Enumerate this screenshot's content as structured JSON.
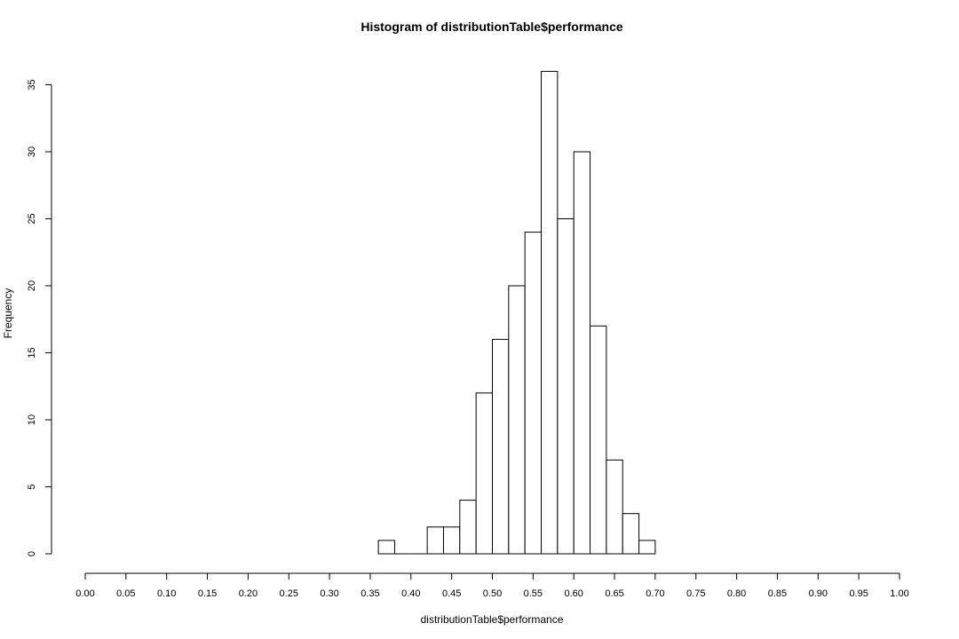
{
  "chart_data": {
    "type": "bar",
    "title": "Histogram of distributionTable$performance",
    "xlabel": "distributionTable$performance",
    "ylabel": "Frequency",
    "xlim": [
      0,
      1
    ],
    "ylim": [
      0,
      36
    ],
    "bin_width": 0.02,
    "bins": [
      {
        "start": 0.36,
        "end": 0.38,
        "count": 1
      },
      {
        "start": 0.38,
        "end": 0.4,
        "count": 0
      },
      {
        "start": 0.4,
        "end": 0.42,
        "count": 0
      },
      {
        "start": 0.42,
        "end": 0.44,
        "count": 2
      },
      {
        "start": 0.44,
        "end": 0.46,
        "count": 2
      },
      {
        "start": 0.46,
        "end": 0.48,
        "count": 4
      },
      {
        "start": 0.48,
        "end": 0.5,
        "count": 12
      },
      {
        "start": 0.5,
        "end": 0.52,
        "count": 16
      },
      {
        "start": 0.52,
        "end": 0.54,
        "count": 20
      },
      {
        "start": 0.54,
        "end": 0.56,
        "count": 24
      },
      {
        "start": 0.56,
        "end": 0.58,
        "count": 36
      },
      {
        "start": 0.58,
        "end": 0.6,
        "count": 25
      },
      {
        "start": 0.6,
        "end": 0.62,
        "count": 30
      },
      {
        "start": 0.62,
        "end": 0.64,
        "count": 17
      },
      {
        "start": 0.64,
        "end": 0.66,
        "count": 7
      },
      {
        "start": 0.66,
        "end": 0.68,
        "count": 3
      },
      {
        "start": 0.68,
        "end": 0.7,
        "count": 1
      }
    ],
    "x_ticks": [
      "0.00",
      "0.05",
      "0.10",
      "0.15",
      "0.20",
      "0.25",
      "0.30",
      "0.35",
      "0.40",
      "0.45",
      "0.50",
      "0.55",
      "0.60",
      "0.65",
      "0.70",
      "0.75",
      "0.80",
      "0.85",
      "0.90",
      "0.95",
      "1.00"
    ],
    "y_ticks": [
      "0",
      "5",
      "10",
      "15",
      "20",
      "25",
      "30",
      "35"
    ],
    "grid": false,
    "legend": "none",
    "colors": {
      "bar_fill": "#ffffff",
      "bar_stroke": "#000000"
    }
  }
}
